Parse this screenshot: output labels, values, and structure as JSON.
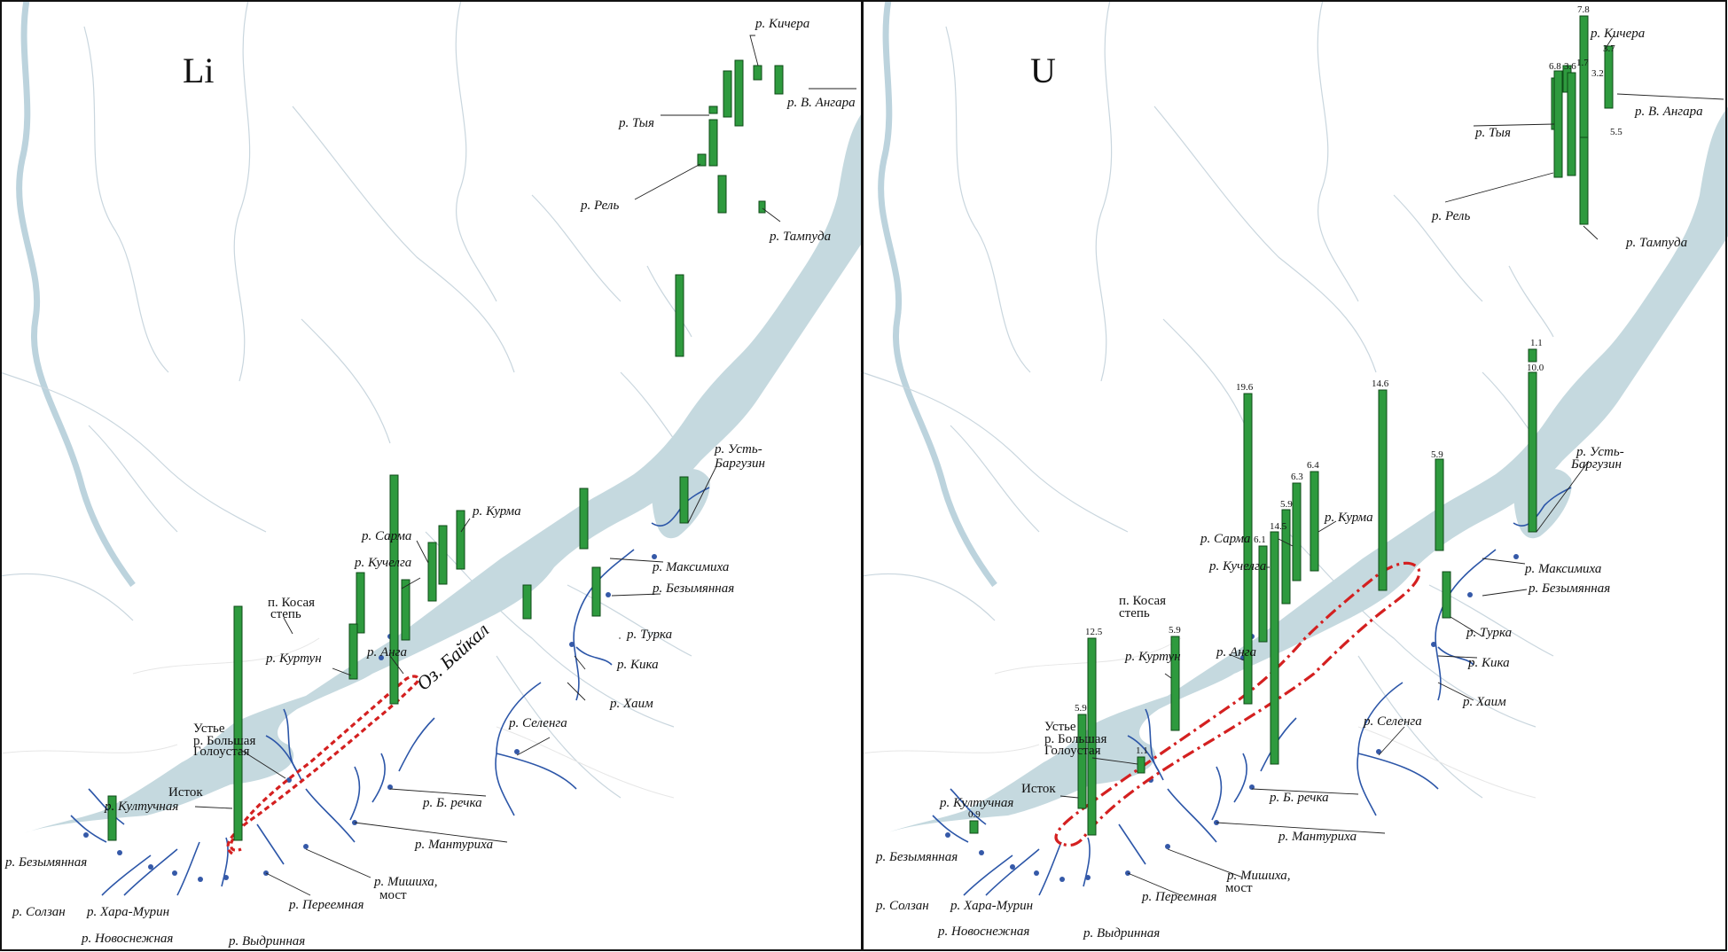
{
  "panels": [
    {
      "element": "Li",
      "lake_name": "Оз. Байкал",
      "bar_colors": {
        "fill": "#2e9a3e",
        "stroke": "#0d4a17"
      },
      "zone_color": "#d42020"
    },
    {
      "element": "U",
      "bar_colors": {
        "fill": "#2e9a3e",
        "stroke": "#0d4a17"
      },
      "zone_color": "#d42020",
      "values": [
        "7.8",
        "3.7",
        "1.7",
        "6.8",
        "3.6",
        "3.2",
        "5.5",
        "1.1",
        "10.0",
        "19.6",
        "14.6",
        "5.9",
        "6.3",
        "6.4",
        "5.9",
        "14.5",
        "6.1",
        "5.9",
        "12.5",
        "5.9",
        "1.1",
        "0.9"
      ]
    }
  ],
  "labels": {
    "kichera": "р. Кичера",
    "v_angara": "р. В. Ангара",
    "tyya": "р. Тыя",
    "rel": "р. Рель",
    "tampuda": "р. Тампуда",
    "ust_barguzin_1": "р. Усть-",
    "ust_barguzin_2": "Баргузин",
    "kurma": "р. Курма",
    "sarma": "р. Сарма",
    "kuchelga": "р. Кучелга",
    "maksimikha": "р. Максимиха",
    "bezymyannaya": "р. Безымянная",
    "kosaya_1": "п. Косая",
    "kosaya_2": "степь",
    "turka": "р. Турка",
    "kurtun": "р. Куртун",
    "anga": "р. Анга",
    "kika": "р. Кика",
    "khaim": "р. Хаим",
    "selenga": "р. Селенга",
    "golo_1": "Устье",
    "golo_2": "р. Большая",
    "golo_3": "Голоустая",
    "istok": "Исток",
    "kultuchnaya": "р. Култучная",
    "b_rechka": "р. Б. речка",
    "manturikha": "р. Мантуриха",
    "bezymyannaya_sw": "р. Безымянная",
    "mishikha_1": "р. Мишиха,",
    "mishikha_2": "мост",
    "pereemnaya": "р. Переемная",
    "solzan": "р. Солзан",
    "khara_murin": "р. Хара-Мурин",
    "novosnezhnaya": "р. Новоснежная",
    "vydrinnaya": "р. Выдринная"
  }
}
